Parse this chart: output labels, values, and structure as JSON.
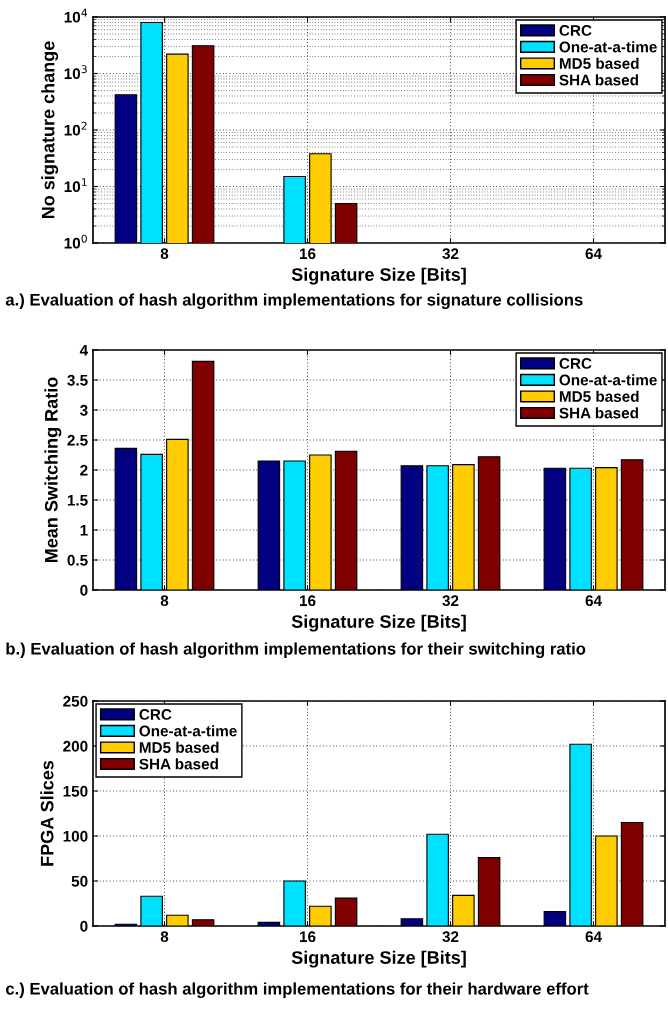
{
  "chart_data": [
    {
      "type": "bar",
      "xlabel": "Signature Size [Bits]",
      "ylabel": "No signature change",
      "categories": [
        "8",
        "16",
        "32",
        "64"
      ],
      "log": "y",
      "ylim": [
        1,
        10000
      ],
      "yticks": [
        {
          "value": 1,
          "label": "10$^{0}$"
        },
        {
          "value": 10,
          "label": "10$^{1}$"
        },
        {
          "value": 100,
          "label": "10$^{2}$"
        },
        {
          "value": 1000,
          "label": "10$^{3}$"
        },
        {
          "value": 10000,
          "label": "10$^{4}$"
        }
      ],
      "grid": true,
      "legend": "top right",
      "series": [
        {
          "name": "CRC",
          "color": "#000080",
          "values": [
            420,
            null,
            null,
            null
          ]
        },
        {
          "name": "One-at-a-time",
          "color": "#00e0ff",
          "values": [
            8000,
            15,
            null,
            null
          ]
        },
        {
          "name": "MD5 based",
          "color": "#ffcc00",
          "values": [
            2200,
            38,
            null,
            null
          ]
        },
        {
          "name": "SHA based",
          "color": "#800000",
          "values": [
            3100,
            5,
            null,
            null
          ]
        }
      ],
      "annotations": [
        "a.) Evaluation of hash algorithm implementations for signature collisions"
      ]
    },
    {
      "type": "bar",
      "xlabel": "Signature Size [Bits]",
      "ylabel": "Mean Switching Ratio",
      "categories": [
        "8",
        "16",
        "32",
        "64"
      ],
      "ylim": [
        0,
        4
      ],
      "yticks": [
        0,
        0.5,
        1,
        1.5,
        2,
        2.5,
        3,
        3.5,
        4
      ],
      "grid": true,
      "legend": "top right",
      "series": [
        {
          "name": "CRC",
          "color": "#000080",
          "values": [
            2.36,
            2.15,
            2.07,
            2.03
          ]
        },
        {
          "name": "One-at-a-time",
          "color": "#00e0ff",
          "values": [
            2.26,
            2.15,
            2.07,
            2.03
          ]
        },
        {
          "name": "MD5 based",
          "color": "#ffcc00",
          "values": [
            2.51,
            2.25,
            2.09,
            2.04
          ]
        },
        {
          "name": "SHA based",
          "color": "#800000",
          "values": [
            3.81,
            2.31,
            2.22,
            2.17
          ]
        }
      ],
      "annotations": [
        "b.) Evaluation of hash algorithm implementations for their switching ratio"
      ]
    },
    {
      "type": "bar",
      "xlabel": "Signature Size [Bits]",
      "ylabel": "FPGA Slices",
      "categories": [
        "8",
        "16",
        "32",
        "64"
      ],
      "ylim": [
        0,
        250
      ],
      "yticks": [
        0,
        50,
        100,
        150,
        200,
        250
      ],
      "grid": true,
      "legend": "top left",
      "series": [
        {
          "name": "CRC",
          "color": "#000080",
          "values": [
            2,
            4,
            8,
            16
          ]
        },
        {
          "name": "One-at-a-time",
          "color": "#00e0ff",
          "values": [
            33,
            50,
            102,
            202
          ]
        },
        {
          "name": "MD5 based",
          "color": "#ffcc00",
          "values": [
            12,
            22,
            34,
            100
          ]
        },
        {
          "name": "SHA based",
          "color": "#800000",
          "values": [
            7,
            31,
            76,
            115
          ]
        }
      ],
      "annotations": [
        "c.) Evaluation of hash algorithm implementations for their hardware effort"
      ]
    }
  ]
}
